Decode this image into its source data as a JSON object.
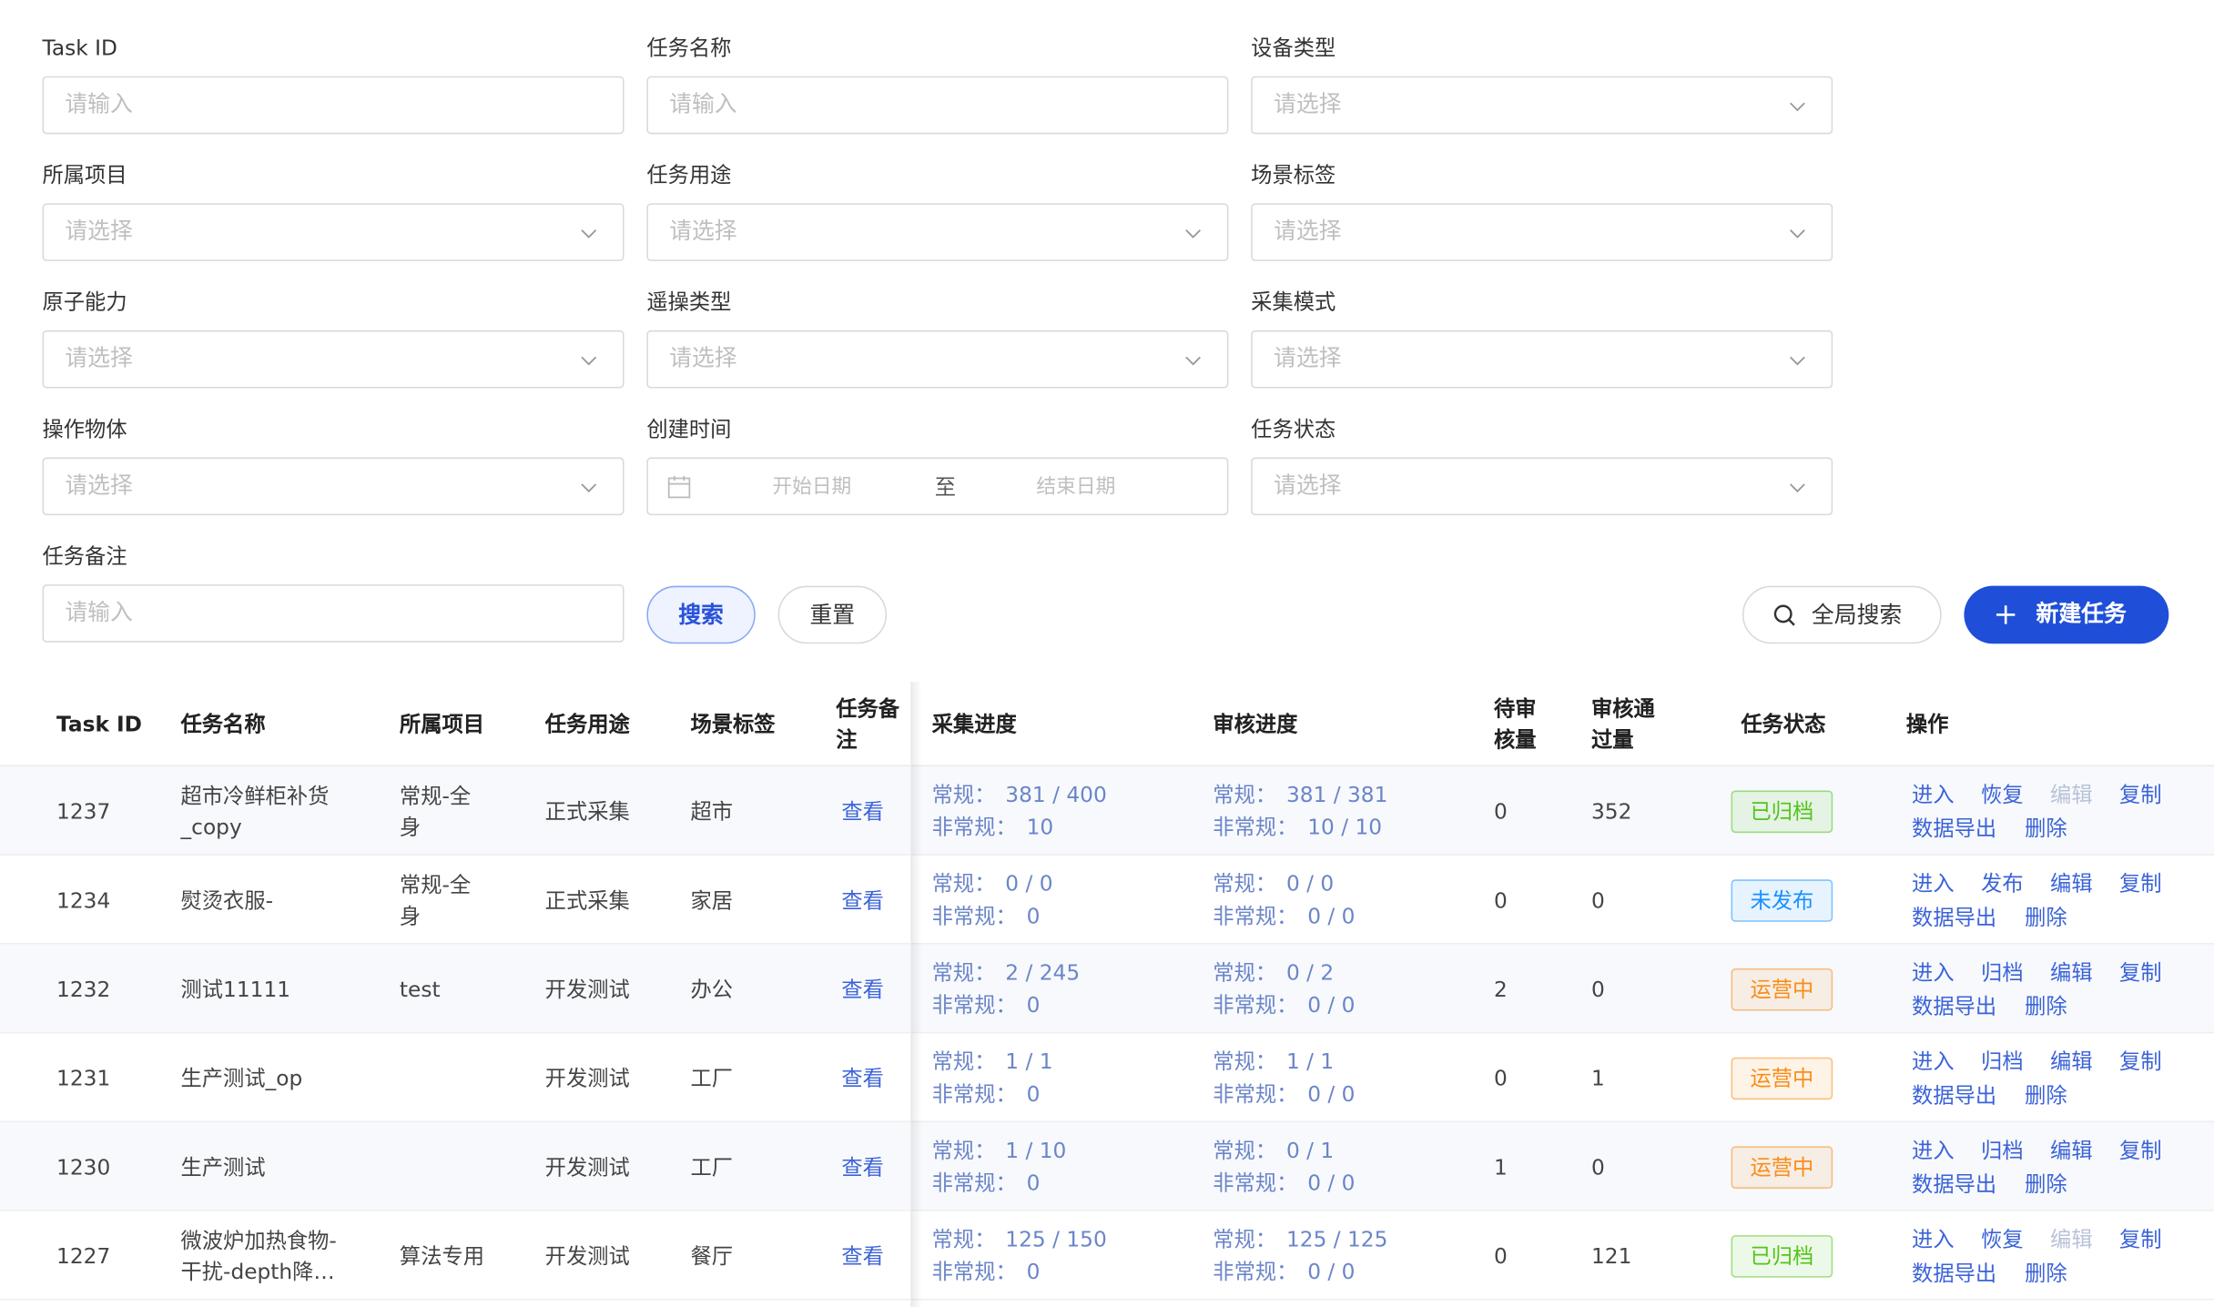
{
  "filters": [
    {
      "label": "Task ID",
      "type": "input",
      "placeholder": "请输入"
    },
    {
      "label": "任务名称",
      "type": "input",
      "placeholder": "请输入"
    },
    {
      "label": "设备类型",
      "type": "select",
      "placeholder": "请选择"
    },
    {
      "label": "所属项目",
      "type": "select",
      "placeholder": "请选择"
    },
    {
      "label": "任务用途",
      "type": "select",
      "placeholder": "请选择"
    },
    {
      "label": "场景标签",
      "type": "select",
      "placeholder": "请选择"
    },
    {
      "label": "原子能力",
      "type": "select",
      "placeholder": "请选择"
    },
    {
      "label": "遥操类型",
      "type": "select",
      "placeholder": "请选择"
    },
    {
      "label": "采集模式",
      "type": "select",
      "placeholder": "请选择"
    },
    {
      "label": "操作物体",
      "type": "select",
      "placeholder": "请选择"
    },
    {
      "label": "创建时间",
      "type": "date",
      "start": "开始日期",
      "separator": "至",
      "end": "结束日期"
    },
    {
      "label": "任务状态",
      "type": "select",
      "placeholder": "请选择"
    },
    {
      "label": "任务备注",
      "type": "input",
      "placeholder": "请输入"
    }
  ],
  "buttons": {
    "search": "搜索",
    "reset": "重置",
    "global_search": "全局搜索",
    "create": "新建任务"
  },
  "table": {
    "columns": [
      "Task ID",
      "任务名称",
      "所属项目",
      "任务用途",
      "场景标签",
      "任务备注",
      "采集进度",
      "审核进度",
      "待审核量",
      "审核通过量",
      "任务状态",
      "操作"
    ],
    "regular_label": "常规：",
    "irregular_label": "非常规：",
    "rows": [
      {
        "id": "1237",
        "name": "超市冷鲜柜补货_copy",
        "project": "常规-全身",
        "purpose": "正式采集",
        "scene": "超市",
        "note": "查看",
        "collect": {
          "regular": "381 / 400",
          "irregular": "10"
        },
        "review": {
          "regular": "381 / 381",
          "irregular": "10 / 10"
        },
        "pending": 0,
        "passed": 352,
        "status": {
          "text": "已归档",
          "color": "#52c41a"
        },
        "actions": [
          {
            "label": "进入",
            "disabled": false
          },
          {
            "label": "恢复",
            "disabled": false
          },
          {
            "label": "编辑",
            "disabled": true
          },
          {
            "label": "复制",
            "disabled": false
          },
          {
            "label": "数据导出",
            "disabled": false
          },
          {
            "label": "删除",
            "disabled": false
          }
        ]
      },
      {
        "id": "1234",
        "name": "熨烫衣服-",
        "project": "常规-全身",
        "purpose": "正式采集",
        "scene": "家居",
        "note": "查看",
        "collect": {
          "regular": "0 / 0",
          "irregular": "0"
        },
        "review": {
          "regular": "0 / 0",
          "irregular": "0 / 0"
        },
        "pending": 0,
        "passed": 0,
        "status": {
          "text": "未发布",
          "color": "#1890ff"
        },
        "actions": [
          {
            "label": "进入",
            "disabled": false
          },
          {
            "label": "发布",
            "disabled": false
          },
          {
            "label": "编辑",
            "disabled": false
          },
          {
            "label": "复制",
            "disabled": false
          },
          {
            "label": "数据导出",
            "disabled": false
          },
          {
            "label": "删除",
            "disabled": false
          }
        ]
      },
      {
        "id": "1232",
        "name": "测试11111",
        "project": "test",
        "purpose": "开发测试",
        "scene": "办公",
        "note": "查看",
        "collect": {
          "regular": "2 / 245",
          "irregular": "0"
        },
        "review": {
          "regular": "0 / 2",
          "irregular": "0 / 0"
        },
        "pending": 2,
        "passed": 0,
        "status": {
          "text": "运营中",
          "color": "#fa8c16"
        },
        "actions": [
          {
            "label": "进入",
            "disabled": false
          },
          {
            "label": "归档",
            "disabled": false
          },
          {
            "label": "编辑",
            "disabled": false
          },
          {
            "label": "复制",
            "disabled": false
          },
          {
            "label": "数据导出",
            "disabled": false
          },
          {
            "label": "删除",
            "disabled": false
          }
        ]
      },
      {
        "id": "1231",
        "name": "生产测试_op",
        "project": null,
        "purpose": "开发测试",
        "scene": "工厂",
        "note": "查看",
        "collect": {
          "regular": "1 / 1",
          "irregular": "0"
        },
        "review": {
          "regular": "1 / 1",
          "irregular": "0 / 0"
        },
        "pending": 0,
        "passed": 1,
        "status": {
          "text": "运营中",
          "color": "#fa8c16"
        },
        "actions": [
          {
            "label": "进入",
            "disabled": false
          },
          {
            "label": "归档",
            "disabled": false
          },
          {
            "label": "编辑",
            "disabled": false
          },
          {
            "label": "复制",
            "disabled": false
          },
          {
            "label": "数据导出",
            "disabled": false
          },
          {
            "label": "删除",
            "disabled": false
          }
        ]
      },
      {
        "id": "1230",
        "name": "生产测试",
        "project": null,
        "purpose": "开发测试",
        "scene": "工厂",
        "note": "查看",
        "collect": {
          "regular": "1 / 10",
          "irregular": "0"
        },
        "review": {
          "regular": "0 / 1",
          "irregular": "0 / 0"
        },
        "pending": 1,
        "passed": 0,
        "status": {
          "text": "运营中",
          "color": "#fa8c16"
        },
        "actions": [
          {
            "label": "进入",
            "disabled": false
          },
          {
            "label": "归档",
            "disabled": false
          },
          {
            "label": "编辑",
            "disabled": false
          },
          {
            "label": "复制",
            "disabled": false
          },
          {
            "label": "数据导出",
            "disabled": false
          },
          {
            "label": "删除",
            "disabled": false
          }
        ]
      },
      {
        "id": "1227",
        "name": "微波炉加热食物-干扰-depth降…",
        "project": "算法专用",
        "purpose": "开发测试",
        "scene": "餐厅",
        "note": "查看",
        "collect": {
          "regular": "125 / 150",
          "irregular": "0"
        },
        "review": {
          "regular": "125 / 125",
          "irregular": "0 / 0"
        },
        "pending": 0,
        "passed": 121,
        "status": {
          "text": "已归档",
          "color": "#52c41a"
        },
        "actions": [
          {
            "label": "进入",
            "disabled": false
          },
          {
            "label": "恢复",
            "disabled": false
          },
          {
            "label": "编辑",
            "disabled": true
          },
          {
            "label": "复制",
            "disabled": false
          },
          {
            "label": "数据导出",
            "disabled": false
          },
          {
            "label": "删除",
            "disabled": false
          }
        ]
      }
    ]
  }
}
